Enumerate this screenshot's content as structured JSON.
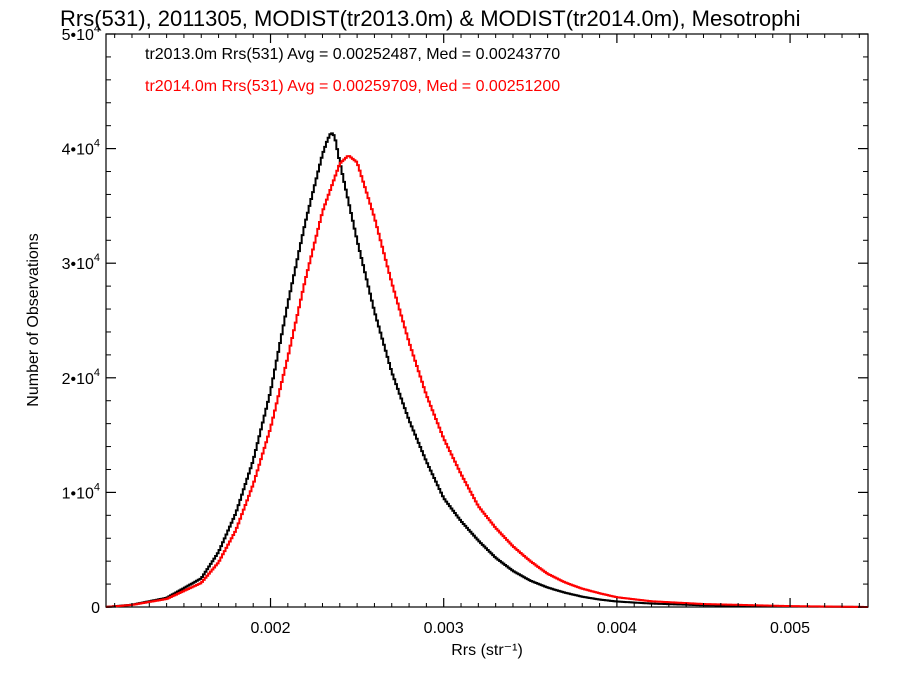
{
  "chart_data": {
    "type": "line",
    "title": "Rrs(531), 2011305, MODIST(tr2013.0m) & MODIST(tr2014.0m), Mesotrophi",
    "xlabel": "Rrs (str⁻¹)",
    "ylabel": "Number of Observations",
    "xlim": [
      0.00105,
      0.00545
    ],
    "ylim": [
      0,
      50000
    ],
    "xticks": [
      {
        "value": 0.002,
        "label": "0.002"
      },
      {
        "value": 0.003,
        "label": "0.003"
      },
      {
        "value": 0.004,
        "label": "0.004"
      },
      {
        "value": 0.005,
        "label": "0.005"
      }
    ],
    "yticks": [
      {
        "value": 0,
        "base": "0",
        "exp": ""
      },
      {
        "value": 10000,
        "base": "1•10",
        "exp": "4"
      },
      {
        "value": 20000,
        "base": "2•10",
        "exp": "4"
      },
      {
        "value": 30000,
        "base": "3•10",
        "exp": "4"
      },
      {
        "value": 40000,
        "base": "4•10",
        "exp": "4"
      },
      {
        "value": 50000,
        "base": "5•10",
        "exp": "4"
      }
    ],
    "grid": false,
    "legend_position": "top-left",
    "series": [
      {
        "name": "tr2013.0m",
        "color": "#000000",
        "stats_label": "tr2013.0m Rrs(531) Avg = 0.00252487, Med = 0.00243770",
        "x": [
          0.00105,
          0.0012,
          0.0014,
          0.0016,
          0.0017,
          0.0018,
          0.0019,
          0.002,
          0.0021,
          0.0022,
          0.0023,
          0.00233,
          0.00235,
          0.00237,
          0.0024,
          0.0025,
          0.0026,
          0.0027,
          0.0028,
          0.0029,
          0.003,
          0.0031,
          0.0032,
          0.0033,
          0.0034,
          0.0035,
          0.0036,
          0.0037,
          0.0038,
          0.0039,
          0.004,
          0.0042,
          0.0045,
          0.005,
          0.00545
        ],
        "y": [
          0,
          200,
          800,
          2500,
          4800,
          8200,
          12800,
          18800,
          26500,
          33500,
          39500,
          40800,
          41400,
          41100,
          38800,
          32000,
          25800,
          20500,
          16300,
          12700,
          9500,
          7500,
          5800,
          4300,
          3150,
          2300,
          1700,
          1250,
          900,
          650,
          480,
          300,
          150,
          50,
          0
        ]
      },
      {
        "name": "tr2014.0m",
        "color": "#ff0000",
        "stats_label": "tr2014.0m Rrs(531) Avg = 0.00259709, Med = 0.00251200",
        "x": [
          0.00105,
          0.0012,
          0.0014,
          0.0016,
          0.0017,
          0.0018,
          0.0019,
          0.002,
          0.0021,
          0.0022,
          0.0023,
          0.0024,
          0.00245,
          0.0025,
          0.0026,
          0.0027,
          0.0028,
          0.0029,
          0.003,
          0.0031,
          0.0032,
          0.0033,
          0.0034,
          0.0035,
          0.0036,
          0.0037,
          0.0038,
          0.0039,
          0.004,
          0.0042,
          0.0045,
          0.005,
          0.00545
        ],
        "y": [
          0,
          180,
          700,
          2100,
          3900,
          6700,
          10700,
          15600,
          21800,
          28500,
          34500,
          38700,
          39400,
          38800,
          34000,
          28300,
          23100,
          18500,
          14700,
          11600,
          8800,
          6900,
          5300,
          4000,
          2900,
          2150,
          1600,
          1200,
          850,
          500,
          260,
          80,
          0
        ]
      }
    ]
  }
}
